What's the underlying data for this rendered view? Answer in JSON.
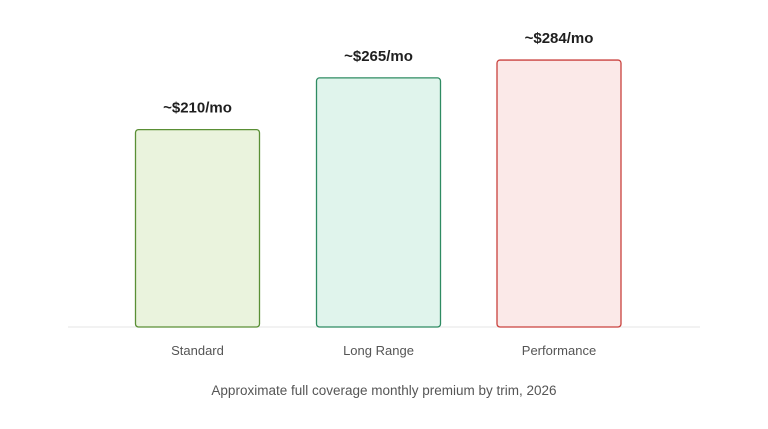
{
  "chart_data": {
    "type": "bar",
    "categories": [
      "Standard",
      "Long Range",
      "Performance"
    ],
    "values": [
      210,
      265,
      284
    ],
    "value_labels": [
      "~$210/mo",
      "~$265/mo",
      "~$284/mo"
    ],
    "caption": "Approximate full coverage monthly premium by trim, 2026",
    "ylim": [
      0,
      300
    ],
    "grid": false,
    "legend": "none",
    "colors": {
      "fills": [
        "#eaf3dd",
        "#e0f4ec",
        "#fbe9e8"
      ],
      "strokes": [
        "#5a8f35",
        "#2e8b62",
        "#c9413d"
      ],
      "baseline": "#e4e4e4"
    }
  }
}
